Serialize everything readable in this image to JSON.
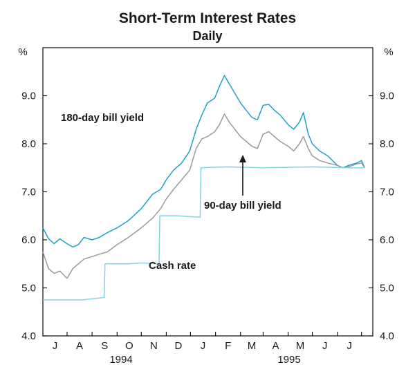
{
  "chart_data": {
    "type": "line",
    "title": "Short-Term Interest Rates",
    "subtitle": "Daily",
    "ylabel_left": "%",
    "ylabel_right": "%",
    "ylim": [
      4.0,
      10.0
    ],
    "yticks": [
      "4.0",
      "5.0",
      "6.0",
      "7.0",
      "8.0",
      "9.0"
    ],
    "x_months": [
      "J",
      "A",
      "S",
      "O",
      "N",
      "D",
      "J",
      "F",
      "M",
      "A",
      "M",
      "J",
      "J"
    ],
    "x_years": [
      "1994",
      "1995"
    ],
    "x_range": [
      "1994-06-01",
      "1995-07-15"
    ],
    "colors": {
      "bill180": "#1e9fd0",
      "bill90": "#9a9a9a",
      "cash": "#86d1ea",
      "axis": "#1a1a1a"
    },
    "annotations": {
      "bill180": "180-day bill yield",
      "bill90": "90-day bill yield",
      "cash": "Cash rate"
    },
    "series": [
      {
        "name": "180-day bill yield",
        "color_key": "bill180",
        "points": [
          [
            "1994-06-01",
            6.25
          ],
          [
            "1994-06-08",
            6.02
          ],
          [
            "1994-06-15",
            5.92
          ],
          [
            "1994-06-22",
            6.02
          ],
          [
            "1994-07-01",
            5.92
          ],
          [
            "1994-07-08",
            5.85
          ],
          [
            "1994-07-15",
            5.9
          ],
          [
            "1994-07-22",
            6.05
          ],
          [
            "1994-08-01",
            6.0
          ],
          [
            "1994-08-10",
            6.05
          ],
          [
            "1994-08-20",
            6.15
          ],
          [
            "1994-09-01",
            6.25
          ],
          [
            "1994-09-15",
            6.4
          ],
          [
            "1994-10-01",
            6.65
          ],
          [
            "1994-10-15",
            6.95
          ],
          [
            "1994-10-25",
            7.05
          ],
          [
            "1994-11-01",
            7.25
          ],
          [
            "1994-11-10",
            7.45
          ],
          [
            "1994-11-20",
            7.6
          ],
          [
            "1994-11-30",
            7.85
          ],
          [
            "1994-12-08",
            8.3
          ],
          [
            "1994-12-15",
            8.6
          ],
          [
            "1994-12-22",
            8.85
          ],
          [
            "1994-12-31",
            8.95
          ],
          [
            "1995-01-06",
            9.2
          ],
          [
            "1995-01-12",
            9.42
          ],
          [
            "1995-01-18",
            9.25
          ],
          [
            "1995-01-25",
            9.05
          ],
          [
            "1995-02-01",
            8.85
          ],
          [
            "1995-02-08",
            8.7
          ],
          [
            "1995-02-15",
            8.55
          ],
          [
            "1995-02-22",
            8.5
          ],
          [
            "1995-03-01",
            8.8
          ],
          [
            "1995-03-08",
            8.82
          ],
          [
            "1995-03-15",
            8.7
          ],
          [
            "1995-03-22",
            8.6
          ],
          [
            "1995-04-01",
            8.4
          ],
          [
            "1995-04-08",
            8.3
          ],
          [
            "1995-04-15",
            8.45
          ],
          [
            "1995-04-20",
            8.65
          ],
          [
            "1995-04-26",
            8.2
          ],
          [
            "1995-05-01",
            8.0
          ],
          [
            "1995-05-10",
            7.85
          ],
          [
            "1995-05-20",
            7.75
          ],
          [
            "1995-06-01",
            7.55
          ],
          [
            "1995-06-08",
            7.5
          ],
          [
            "1995-06-15",
            7.55
          ],
          [
            "1995-06-25",
            7.6
          ],
          [
            "1995-07-01",
            7.65
          ],
          [
            "1995-07-05",
            7.5
          ]
        ]
      },
      {
        "name": "90-day bill yield",
        "color_key": "bill90",
        "points": [
          [
            "1994-06-01",
            5.75
          ],
          [
            "1994-06-08",
            5.4
          ],
          [
            "1994-06-15",
            5.3
          ],
          [
            "1994-06-22",
            5.35
          ],
          [
            "1994-07-01",
            5.2
          ],
          [
            "1994-07-08",
            5.4
          ],
          [
            "1994-07-15",
            5.5
          ],
          [
            "1994-07-22",
            5.6
          ],
          [
            "1994-08-01",
            5.65
          ],
          [
            "1994-08-10",
            5.7
          ],
          [
            "1994-08-20",
            5.75
          ],
          [
            "1994-09-01",
            5.9
          ],
          [
            "1994-09-15",
            6.05
          ],
          [
            "1994-10-01",
            6.25
          ],
          [
            "1994-10-15",
            6.45
          ],
          [
            "1994-10-25",
            6.65
          ],
          [
            "1994-11-01",
            6.85
          ],
          [
            "1994-11-10",
            7.05
          ],
          [
            "1994-11-20",
            7.25
          ],
          [
            "1994-11-30",
            7.45
          ],
          [
            "1994-12-08",
            7.9
          ],
          [
            "1994-12-15",
            8.1
          ],
          [
            "1994-12-22",
            8.15
          ],
          [
            "1994-12-31",
            8.25
          ],
          [
            "1995-01-06",
            8.4
          ],
          [
            "1995-01-12",
            8.62
          ],
          [
            "1995-01-18",
            8.45
          ],
          [
            "1995-01-25",
            8.3
          ],
          [
            "1995-02-01",
            8.15
          ],
          [
            "1995-02-08",
            8.05
          ],
          [
            "1995-02-15",
            7.95
          ],
          [
            "1995-02-22",
            7.9
          ],
          [
            "1995-03-01",
            8.2
          ],
          [
            "1995-03-08",
            8.25
          ],
          [
            "1995-03-15",
            8.15
          ],
          [
            "1995-03-22",
            8.05
          ],
          [
            "1995-04-01",
            7.95
          ],
          [
            "1995-04-08",
            7.85
          ],
          [
            "1995-04-15",
            8.0
          ],
          [
            "1995-04-20",
            8.15
          ],
          [
            "1995-04-26",
            7.9
          ],
          [
            "1995-05-01",
            7.75
          ],
          [
            "1995-05-10",
            7.65
          ],
          [
            "1995-05-20",
            7.6
          ],
          [
            "1995-06-01",
            7.55
          ],
          [
            "1995-06-08",
            7.5
          ],
          [
            "1995-06-15",
            7.52
          ],
          [
            "1995-06-25",
            7.58
          ],
          [
            "1995-07-01",
            7.6
          ],
          [
            "1995-07-05",
            7.5
          ]
        ]
      },
      {
        "name": "Cash rate",
        "color_key": "cash",
        "points": [
          [
            "1994-06-01",
            4.75
          ],
          [
            "1994-07-20",
            4.75
          ],
          [
            "1994-08-16",
            4.8
          ],
          [
            "1994-08-17",
            5.5
          ],
          [
            "1994-09-15",
            5.5
          ],
          [
            "1994-10-01",
            5.52
          ],
          [
            "1994-10-23",
            5.5
          ],
          [
            "1994-10-24",
            6.5
          ],
          [
            "1994-11-15",
            6.5
          ],
          [
            "1994-12-13",
            6.47
          ],
          [
            "1994-12-14",
            7.5
          ],
          [
            "1995-01-15",
            7.52
          ],
          [
            "1995-03-01",
            7.5
          ],
          [
            "1995-05-01",
            7.52
          ],
          [
            "1995-06-15",
            7.5
          ],
          [
            "1995-07-05",
            7.5
          ]
        ]
      }
    ]
  }
}
